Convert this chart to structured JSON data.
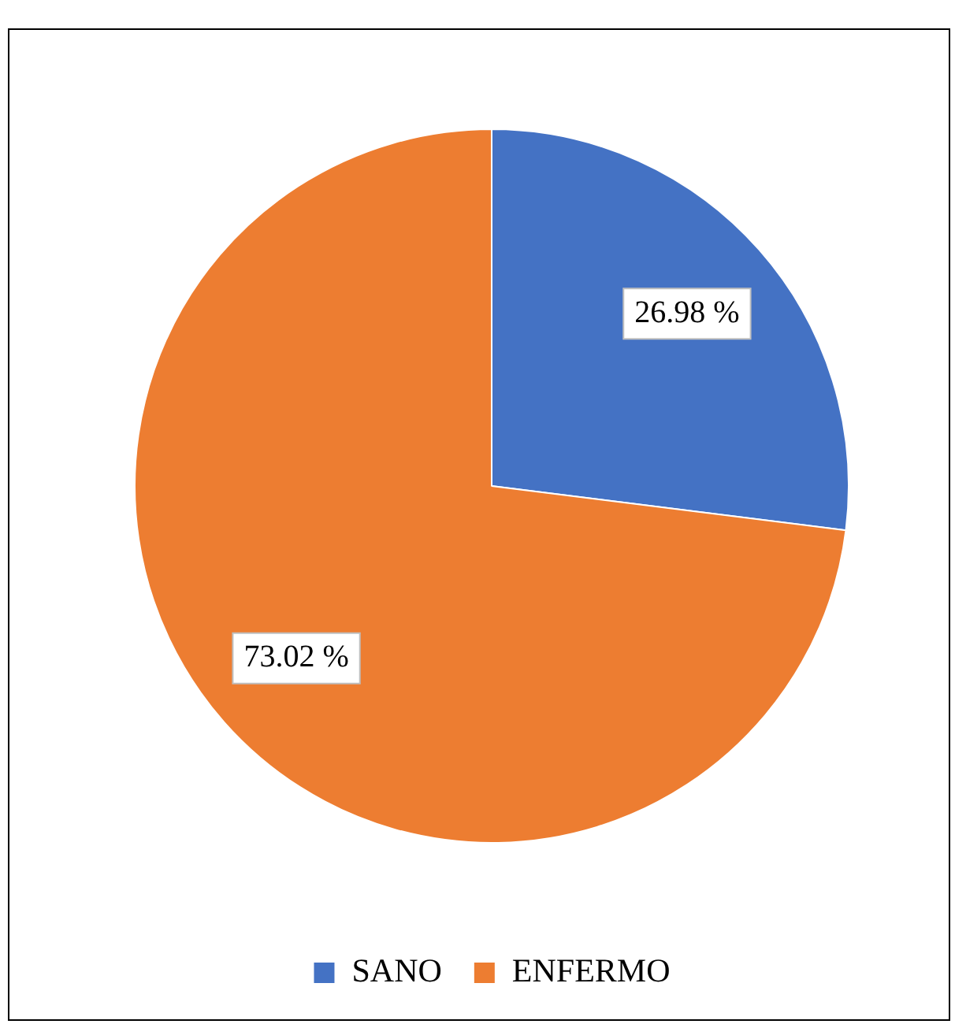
{
  "chart_data": {
    "type": "pie",
    "categories": [
      "SANO",
      "ENFERMO"
    ],
    "values": [
      26.98,
      73.02
    ],
    "colors": [
      "#4472c4",
      "#ed7d31"
    ],
    "value_labels": [
      "26.98 %",
      "73.02 %"
    ],
    "legend": "bottom"
  }
}
